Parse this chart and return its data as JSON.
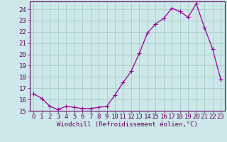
{
  "x": [
    0,
    1,
    2,
    3,
    4,
    5,
    6,
    7,
    8,
    9,
    10,
    11,
    12,
    13,
    14,
    15,
    16,
    17,
    18,
    19,
    20,
    21,
    22,
    23
  ],
  "y": [
    16.5,
    16.1,
    15.4,
    15.1,
    15.4,
    15.3,
    15.2,
    15.2,
    15.3,
    15.4,
    16.4,
    17.5,
    18.5,
    20.1,
    21.9,
    22.7,
    23.2,
    24.1,
    23.8,
    23.3,
    24.5,
    22.4,
    20.5,
    17.8
  ],
  "line_color": "#990099",
  "marker": "D",
  "marker_size": 2.0,
  "bg_color": "#cce8e8",
  "grid_color": "#aacccc",
  "xlabel": "Windchill (Refroidissement éolien,°C)",
  "ylim": [
    15,
    24.7
  ],
  "xlim": [
    -0.5,
    23.5
  ],
  "yticks": [
    15,
    16,
    17,
    18,
    19,
    20,
    21,
    22,
    23,
    24
  ],
  "xticks": [
    0,
    1,
    2,
    3,
    4,
    5,
    6,
    7,
    8,
    9,
    10,
    11,
    12,
    13,
    14,
    15,
    16,
    17,
    18,
    19,
    20,
    21,
    22,
    23
  ],
  "xlabel_fontsize": 6.5,
  "tick_fontsize": 6.5,
  "label_color": "#660066"
}
